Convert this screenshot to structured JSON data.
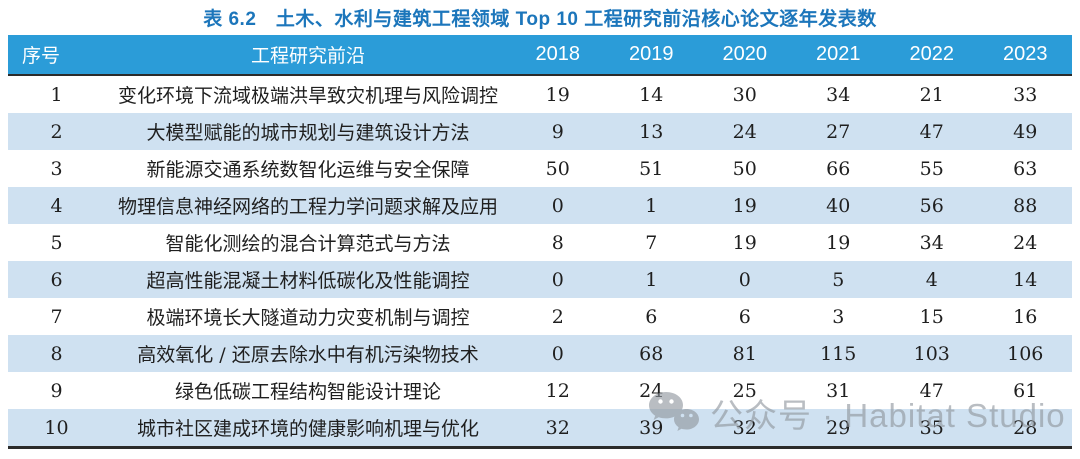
{
  "title": "表 6.2　土木、水利与建筑工程领域 Top 10 工程研究前沿核心论文逐年发表数",
  "table": {
    "columns": [
      "序号",
      "工程研究前沿",
      "2018",
      "2019",
      "2020",
      "2021",
      "2022",
      "2023"
    ],
    "rows": [
      {
        "no": "1",
        "front": "变化环境下流域极端洪旱致灾机理与风险调控",
        "values": [
          19,
          14,
          30,
          34,
          21,
          33
        ]
      },
      {
        "no": "2",
        "front": "大模型赋能的城市规划与建筑设计方法",
        "values": [
          9,
          13,
          24,
          27,
          47,
          49
        ]
      },
      {
        "no": "3",
        "front": "新能源交通系统数智化运维与安全保障",
        "values": [
          50,
          51,
          50,
          66,
          55,
          63
        ]
      },
      {
        "no": "4",
        "front": "物理信息神经网络的工程力学问题求解及应用",
        "values": [
          0,
          1,
          19,
          40,
          56,
          88
        ]
      },
      {
        "no": "5",
        "front": "智能化测绘的混合计算范式与方法",
        "values": [
          8,
          7,
          19,
          19,
          34,
          24
        ]
      },
      {
        "no": "6",
        "front": "超高性能混凝土材料低碳化及性能调控",
        "values": [
          0,
          1,
          0,
          5,
          4,
          14
        ]
      },
      {
        "no": "7",
        "front": "极端环境长大隧道动力灾变机制与调控",
        "values": [
          2,
          6,
          6,
          3,
          15,
          16
        ]
      },
      {
        "no": "8",
        "front": "高效氧化 / 还原去除水中有机污染物技术",
        "values": [
          0,
          68,
          81,
          115,
          103,
          106
        ]
      },
      {
        "no": "9",
        "front": "绿色低碳工程结构智能设计理论",
        "values": [
          12,
          24,
          25,
          31,
          47,
          61
        ]
      },
      {
        "no": "10",
        "front": "城市社区建成环境的健康影响机理与优化",
        "values": [
          32,
          39,
          32,
          29,
          35,
          28
        ]
      }
    ]
  },
  "chart_data": {
    "type": "table",
    "title": "表 6.2　土木、水利与建筑工程领域 Top 10 工程研究前沿核心论文逐年发表数",
    "categories": [
      "2018",
      "2019",
      "2020",
      "2021",
      "2022",
      "2023"
    ],
    "series": [
      {
        "name": "变化环境下流域极端洪旱致灾机理与风险调控",
        "values": [
          19,
          14,
          30,
          34,
          21,
          33
        ]
      },
      {
        "name": "大模型赋能的城市规划与建筑设计方法",
        "values": [
          9,
          13,
          24,
          27,
          47,
          49
        ]
      },
      {
        "name": "新能源交通系统数智化运维与安全保障",
        "values": [
          50,
          51,
          50,
          66,
          55,
          63
        ]
      },
      {
        "name": "物理信息神经网络的工程力学问题求解及应用",
        "values": [
          0,
          1,
          19,
          40,
          56,
          88
        ]
      },
      {
        "name": "智能化测绘的混合计算范式与方法",
        "values": [
          8,
          7,
          19,
          19,
          34,
          24
        ]
      },
      {
        "name": "超高性能混凝土材料低碳化及性能调控",
        "values": [
          0,
          1,
          0,
          5,
          4,
          14
        ]
      },
      {
        "name": "极端环境长大隧道动力灾变机制与调控",
        "values": [
          2,
          6,
          6,
          3,
          15,
          16
        ]
      },
      {
        "name": "高效氧化 / 还原去除水中有机污染物技术",
        "values": [
          0,
          68,
          81,
          115,
          103,
          106
        ]
      },
      {
        "name": "绿色低碳工程结构智能设计理论",
        "values": [
          12,
          24,
          25,
          31,
          47,
          61
        ]
      },
      {
        "name": "城市社区建成环境的健康影响机理与优化",
        "values": [
          32,
          39,
          32,
          29,
          35,
          28
        ]
      }
    ]
  },
  "watermark": {
    "icon": "wechat-icon",
    "text": "公众号 · Habitat Studio"
  },
  "colors": {
    "header_bg": "#2b9cd8",
    "stripe_bg": "#cfe1f1",
    "title_color": "#1c76bb",
    "line_color": "#2b2b2b",
    "watermark_color": "#8f969d"
  }
}
